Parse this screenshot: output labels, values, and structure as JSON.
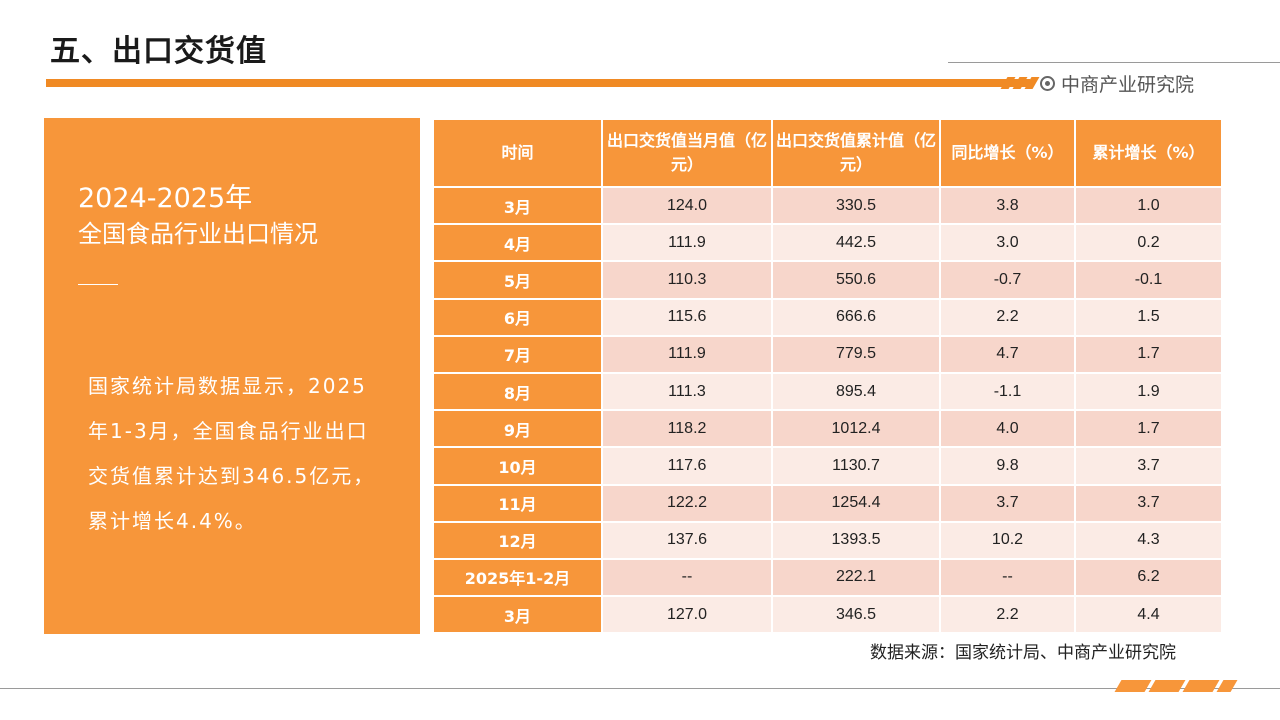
{
  "header": {
    "title": "五、出口交货值",
    "brand": "中商产业研究院",
    "accent_color": "#f08a24"
  },
  "left_panel": {
    "year": "2024-2025年",
    "subtitle": "全国食品行业出口情况",
    "body": "国家统计局数据显示，2025年1-3月，全国食品行业出口交货值累计达到346.5亿元，累计增长4.4%。"
  },
  "table": {
    "headers": [
      "时间",
      "出口交货值当月值（亿元）",
      "出口交货值累计值（亿元）",
      "同比增长（%）",
      "累计增长（%）"
    ],
    "rows": [
      [
        "3月",
        "124.0",
        "330.5",
        "3.8",
        "1.0"
      ],
      [
        "4月",
        "111.9",
        "442.5",
        "3.0",
        "0.2"
      ],
      [
        "5月",
        "110.3",
        "550.6",
        "-0.7",
        "-0.1"
      ],
      [
        "6月",
        "115.6",
        "666.6",
        "2.2",
        "1.5"
      ],
      [
        "7月",
        "111.9",
        "779.5",
        "4.7",
        "1.7"
      ],
      [
        "8月",
        "111.3",
        "895.4",
        "-1.1",
        "1.9"
      ],
      [
        "9月",
        "118.2",
        "1012.4",
        "4.0",
        "1.7"
      ],
      [
        "10月",
        "117.6",
        "1130.7",
        "9.8",
        "3.7"
      ],
      [
        "11月",
        "122.2",
        "1254.4",
        "3.7",
        "3.7"
      ],
      [
        "12月",
        "137.6",
        "1393.5",
        "10.2",
        "4.3"
      ],
      [
        "2025年1-2月",
        "--",
        "222.1",
        "--",
        "6.2"
      ],
      [
        "3月",
        "127.0",
        "346.5",
        "2.2",
        "4.4"
      ]
    ]
  },
  "source": "数据来源：国家统计局、中商产业研究院"
}
